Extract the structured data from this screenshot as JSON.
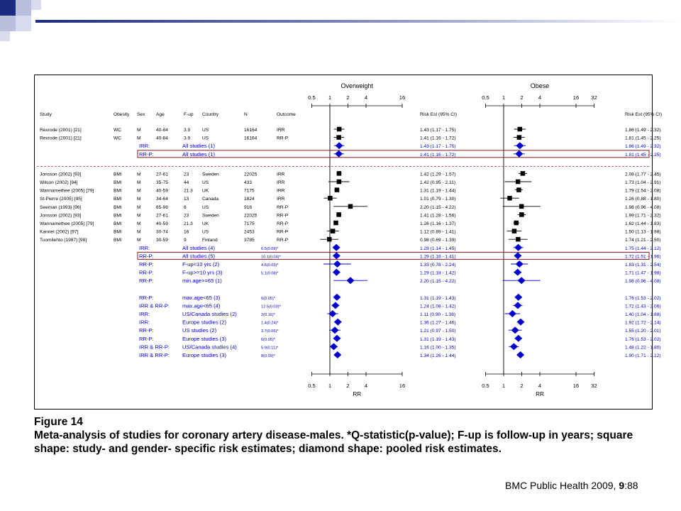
{
  "panels": [
    {
      "title": "Overweight",
      "ticks": [
        "0.5",
        "1",
        "2",
        "4",
        "16"
      ],
      "risk_header": "Risk Est (95% CI)",
      "axis_label": "RR"
    },
    {
      "title": "Obese",
      "ticks": [
        "0.5",
        "1",
        "2",
        "4",
        "16",
        "32"
      ],
      "risk_header": "Risk Est (95% CI)",
      "axis_label": "RR"
    }
  ],
  "column_headers": {
    "study": "Study",
    "obesity": "Obesity",
    "sex": "Sex",
    "age": "Age",
    "fup": "F-up",
    "country": "Country",
    "n": "N",
    "outcome": "Outcome"
  },
  "chart_data": {
    "type": "forest",
    "x_scale": "log",
    "rows": [
      {
        "kind": "study",
        "study": "Rexrode (2001) [21]",
        "obesity": "WC",
        "sex": "M",
        "age": "40-84",
        "fup": "3.9",
        "country": "US",
        "n": "16164",
        "outcome": "IRR",
        "ow": {
          "est": 1.43,
          "lo": 1.17,
          "hi": 1.75,
          "text": "1.43 (1.17 - 1.75)"
        },
        "ob": {
          "est": 1.86,
          "lo": 1.49,
          "hi": 2.32,
          "text": "1.86 (1.49 - 2.32)"
        }
      },
      {
        "kind": "study",
        "study": "Rexrode (2001) [21]",
        "obesity": "WC",
        "sex": "M",
        "age": "40-84",
        "fup": "3.9",
        "country": "US",
        "n": "16164",
        "outcome": "RR-P",
        "ow": {
          "est": 1.41,
          "lo": 1.16,
          "hi": 1.72,
          "text": "1.41 (1.16 - 1.72)"
        },
        "ob": {
          "est": 1.81,
          "lo": 1.45,
          "hi": 2.25,
          "text": "1.81 (1.45 - 2.25)"
        }
      },
      {
        "kind": "pooled",
        "type_label": "IRR:",
        "group": "All studies (1)",
        "q": "",
        "ow": {
          "est": 1.43,
          "lo": 1.17,
          "hi": 1.75,
          "text": "1.43 (1.17 - 1.75)"
        },
        "ob": {
          "est": 1.86,
          "lo": 1.49,
          "hi": 2.32,
          "text": "1.86 (1.49 - 2.32)"
        }
      },
      {
        "kind": "pooled",
        "type_label": "RR-P:",
        "group": "All studies (1)",
        "q": "",
        "boxed": true,
        "ow": {
          "est": 1.41,
          "lo": 1.16,
          "hi": 1.72,
          "text": "1.41 (1.16 - 1.72)"
        },
        "ob": {
          "est": 1.81,
          "lo": 1.45,
          "hi": 2.25,
          "text": "1.81 (1.45 - 2.25)"
        }
      },
      {
        "kind": "study",
        "study": "Jonsson (2002) [93]",
        "obesity": "BMI",
        "sex": "M",
        "age": "27-61",
        "fup": "23",
        "country": "Sweden",
        "n": "22025",
        "outcome": "IRR",
        "ow": {
          "est": 1.42,
          "lo": 1.29,
          "hi": 1.57,
          "text": "1.42 (1.29 - 1.57)"
        },
        "ob": {
          "est": 2.08,
          "lo": 1.77,
          "hi": 2.45,
          "text": "2.08 (1.77 - 2.45)"
        }
      },
      {
        "kind": "study",
        "study": "Wilson (2002) [94]",
        "obesity": "BMI",
        "sex": "M",
        "age": "35-75",
        "fup": "44",
        "country": "US",
        "n": "433",
        "outcome": "IRR",
        "ow": {
          "est": 1.42,
          "lo": 0.95,
          "hi": 2.11,
          "text": "1.42 (0.95 - 2.11)"
        },
        "ob": {
          "est": 1.73,
          "lo": 1.04,
          "hi": 2.91,
          "text": "1.73 (1.04 - 2.91)"
        }
      },
      {
        "kind": "study",
        "study": "Wannamethee (2005) [79]",
        "obesity": "BMI",
        "sex": "M",
        "age": "40-59",
        "fup": "21.3",
        "country": "UK",
        "n": "7175",
        "outcome": "IRR",
        "ow": {
          "est": 1.31,
          "lo": 1.19,
          "hi": 1.44,
          "text": "1.31 (1.19 - 1.44)"
        },
        "ob": {
          "est": 1.79,
          "lo": 1.54,
          "hi": 2.08,
          "text": "1.79 (1.54 - 2.08)"
        }
      },
      {
        "kind": "study",
        "study": "St-Pierre (2005) [95]",
        "obesity": "BMI",
        "sex": "M",
        "age": "34-64",
        "fup": "13",
        "country": "Canada",
        "n": "1824",
        "outcome": "IRR",
        "ow": {
          "est": 1.01,
          "lo": 0.79,
          "hi": 1.3,
          "text": "1.01 (0.79 - 1.30)"
        },
        "ob": {
          "est": 1.26,
          "lo": 0.88,
          "hi": 1.8,
          "text": "1.26 (0.88 - 1.80)"
        }
      },
      {
        "kind": "study",
        "study": "Seeman (1993) [96]",
        "obesity": "BMI",
        "sex": "M",
        "age": "65-98",
        "fup": "6",
        "country": "US",
        "n": "916",
        "outcome": "RR-P",
        "ow": {
          "est": 2.2,
          "lo": 1.15,
          "hi": 4.22,
          "text": "2.20 (1.15 - 4.22)"
        },
        "ob": {
          "est": 1.98,
          "lo": 0.96,
          "hi": 4.08,
          "text": "1.98 (0.96 - 4.08)"
        }
      },
      {
        "kind": "study",
        "study": "Jonsson (2002) [93]",
        "obesity": "BMI",
        "sex": "M",
        "age": "27-61",
        "fup": "23",
        "country": "Sweden",
        "n": "22025",
        "outcome": "RR-P",
        "ow": {
          "est": 1.41,
          "lo": 1.28,
          "hi": 1.56,
          "text": "1.41 (1.28 - 1.56)"
        },
        "ob": {
          "est": 1.99,
          "lo": 1.71,
          "hi": 2.32,
          "text": "1.99 (1.71 - 2.32)"
        }
      },
      {
        "kind": "study",
        "study": "Wannamethee (2005) [79]",
        "obesity": "BMI",
        "sex": "M",
        "age": "40-59",
        "fup": "21.3",
        "country": "UK",
        "n": "7175",
        "outcome": "RR-P",
        "ow": {
          "est": 1.26,
          "lo": 1.16,
          "hi": 1.37,
          "text": "1.26 (1.16 - 1.37)"
        },
        "ob": {
          "est": 1.62,
          "lo": 1.44,
          "hi": 1.83,
          "text": "1.62 (1.44 - 1.83)"
        }
      },
      {
        "kind": "study",
        "study": "Kannel (2002) [97]",
        "obesity": "BMI",
        "sex": "M",
        "age": "30-74",
        "fup": "16",
        "country": "US",
        "n": "2453",
        "outcome": "RR-P",
        "ow": {
          "est": 1.12,
          "lo": 0.89,
          "hi": 1.41,
          "text": "1.12 (0.89 - 1.41)"
        },
        "ob": {
          "est": 1.5,
          "lo": 1.13,
          "hi": 1.98,
          "text": "1.50 (1.13 - 1.98)"
        }
      },
      {
        "kind": "study",
        "study": "Tuomilehto (1987) [98]",
        "obesity": "BMI",
        "sex": "M",
        "age": "30-59",
        "fup": "9",
        "country": "Finland",
        "n": "3785",
        "outcome": "RR-P",
        "ow": {
          "est": 0.98,
          "lo": 0.69,
          "hi": 1.39,
          "text": "0.98 (0.69 - 1.39)"
        },
        "ob": {
          "est": 1.74,
          "lo": 1.21,
          "hi": 2.5,
          "text": "1.74 (1.21 - 2.50)"
        }
      },
      {
        "kind": "pooled",
        "type_label": "IRR:",
        "group": "All studies (4)",
        "q": "6.5(0.09)*",
        "ow": {
          "est": 1.28,
          "lo": 1.14,
          "hi": 1.45,
          "text": "1.28 (1.14 - 1.45)"
        },
        "ob": {
          "est": 1.75,
          "lo": 1.44,
          "hi": 2.12,
          "text": "1.75 (1.44 - 2.12)"
        }
      },
      {
        "kind": "pooled",
        "type_label": "RR-P:",
        "group": "All studies (5)",
        "q": "10.1(0.04)*",
        "boxed": true,
        "ow": {
          "est": 1.29,
          "lo": 1.18,
          "hi": 1.41,
          "text": "1.29 (1.18 - 1.41)"
        },
        "ob": {
          "est": 1.72,
          "lo": 1.51,
          "hi": 1.96,
          "text": "1.72 (1.51 - 1.96)"
        }
      },
      {
        "kind": "pooled",
        "type_label": "RR-P:",
        "group": "F-up<10 yrs (2)",
        "q": "4.6(0.03)*",
        "ow": {
          "est": 1.33,
          "lo": 0.78,
          "hi": 2.24,
          "text": "1.33 (0.78 - 2.24)"
        },
        "ob": {
          "est": 1.83,
          "lo": 1.31,
          "hi": 2.54,
          "text": "1.83 (1.31 - 2.54)"
        }
      },
      {
        "kind": "pooled",
        "type_label": "RR-P:",
        "group": "F-up>=10 yrs (3)",
        "q": "5.1(0.08)*",
        "ow": {
          "est": 1.29,
          "lo": 1.18,
          "hi": 1.42,
          "text": "1.29 (1.18 - 1.42)"
        },
        "ob": {
          "est": 1.71,
          "lo": 1.47,
          "hi": 1.98,
          "text": "1.71 (1.47 - 1.98)"
        }
      },
      {
        "kind": "pooled",
        "type_label": "RR-P:",
        "group": "min.age>=65 (1)",
        "q": "",
        "ow": {
          "est": 2.2,
          "lo": 1.15,
          "hi": 4.22,
          "text": "2.20 (1.15 - 4.22)"
        },
        "ob": {
          "est": 1.98,
          "lo": 0.96,
          "hi": 4.08,
          "text": "1.98 (0.96 - 4.08)"
        }
      },
      {
        "kind": "pooled",
        "type_label": "RR-P:",
        "group": "max.age<65 (3)",
        "q": "6(0.05)*",
        "ow": {
          "est": 1.31,
          "lo": 1.19,
          "hi": 1.43,
          "text": "1.31 (1.19 - 1.43)"
        },
        "ob": {
          "est": 1.76,
          "lo": 1.53,
          "hi": 2.02,
          "text": "1.76 (1.53 - 2.02)"
        }
      },
      {
        "kind": "pooled",
        "type_label": "IRR & RR-P:",
        "group": "max.age<65 (4)",
        "q": "12.5(0.03)*",
        "ow": {
          "est": 1.24,
          "lo": 1.08,
          "hi": 1.42,
          "text": "1.24 (1.08 - 1.42)"
        },
        "ob": {
          "est": 1.72,
          "lo": 1.43,
          "hi": 2.06,
          "text": "1.72 (1.43 - 2.06)"
        }
      },
      {
        "kind": "pooled",
        "type_label": "IRR:",
        "group": "US/Canada studies (2)",
        "q": "2(0.16)*",
        "ow": {
          "est": 1.11,
          "lo": 0.9,
          "hi": 1.38,
          "text": "1.11 (0.90 - 1.38)"
        },
        "ob": {
          "est": 1.4,
          "lo": 1.04,
          "hi": 1.88,
          "text": "1.40 (1.04 - 1.88)"
        }
      },
      {
        "kind": "pooled",
        "type_label": "IRR:",
        "group": "Europe studies (2)",
        "q": "1.4(0.24)*",
        "ow": {
          "est": 1.36,
          "lo": 1.27,
          "hi": 1.46,
          "text": "1.36 (1.27 - 1.46)"
        },
        "ob": {
          "est": 1.92,
          "lo": 1.72,
          "hi": 2.14,
          "text": "1.92 (1.72 - 2.14)"
        }
      },
      {
        "kind": "pooled",
        "type_label": "RR-P:",
        "group": "US studies (2)",
        "q": "3.7(0.06)*",
        "ow": {
          "est": 1.21,
          "lo": 0.97,
          "hi": 1.5,
          "text": "1.21 (0.97 - 1.50)"
        },
        "ob": {
          "est": 1.55,
          "lo": 1.2,
          "hi": 2.01,
          "text": "1.55 (1.20 - 2.01)"
        }
      },
      {
        "kind": "pooled",
        "type_label": "RR-P:",
        "group": "Europe studies (3)",
        "q": "6(0.05)*",
        "ow": {
          "est": 1.31,
          "lo": 1.19,
          "hi": 1.43,
          "text": "1.31 (1.19 - 1.43)"
        },
        "ob": {
          "est": 1.76,
          "lo": 1.53,
          "hi": 2.02,
          "text": "1.76 (1.53 - 2.02)"
        }
      },
      {
        "kind": "pooled",
        "type_label": "IRR & RR-P:",
        "group": "US/Canada studies (4)",
        "q": "5.9(0.11)*",
        "ow": {
          "est": 1.16,
          "lo": 1.0,
          "hi": 1.35,
          "text": "1.16 (1.00 - 1.35)"
        },
        "ob": {
          "est": 1.48,
          "lo": 1.22,
          "hi": 1.8,
          "text": "1.48 (1.22 - 1.80)"
        }
      },
      {
        "kind": "pooled",
        "type_label": "IRR & RR-P:",
        "group": "Europe studies (3)",
        "q": "8(0.09)*",
        "ow": {
          "est": 1.34,
          "lo": 1.26,
          "hi": 1.44,
          "text": "1.34 (1.26 - 1.44)"
        },
        "ob": {
          "est": 1.9,
          "lo": 1.71,
          "hi": 2.12,
          "text": "1.90 (1.71 - 2.12)"
        }
      }
    ]
  },
  "caption": {
    "label": "Figure 14",
    "text": "Meta-analysis of studies for coronary artery disease-males. *Q-statistic(p-value); F-up is follow-up in years; square shape: study- and gender- specific risk estimates; diamond shape: pooled risk estimates."
  },
  "source": {
    "journal": "BMC Public Health",
    "year": "2009,",
    "volume": "9",
    "page": ":88"
  },
  "colors": {
    "accent": "#1c2a80",
    "pooled": "#0000cc",
    "box": "#8b1a1a"
  }
}
